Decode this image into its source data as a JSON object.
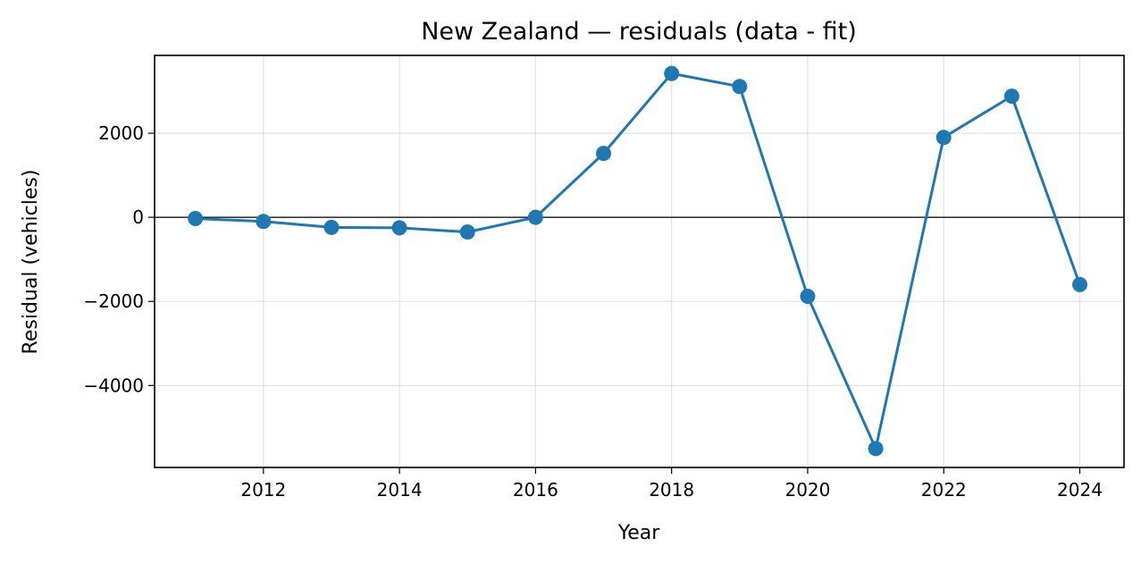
{
  "chart_data": {
    "type": "line",
    "title": "New Zealand — residuals (data - fit)",
    "xlabel": "Year",
    "ylabel": "Residual (vehicles)",
    "xlim": [
      2010.4,
      2024.65
    ],
    "ylim": [
      -5950,
      3850
    ],
    "x_ticks": [
      2012,
      2014,
      2016,
      2018,
      2020,
      2022,
      2024
    ],
    "y_ticks": [
      2000,
      0,
      -2000,
      -4000
    ],
    "y_tick_labels": [
      "2000",
      "0",
      "−2000",
      "−4000"
    ],
    "grid": true,
    "zero_line": true,
    "color": "#1f77b4",
    "x": [
      2011,
      2012,
      2013,
      2014,
      2015,
      2016,
      2017,
      2018,
      2019,
      2020,
      2021,
      2022,
      2023,
      2024
    ],
    "series": [
      {
        "values": [
          -30,
          -100,
          -240,
          -250,
          -350,
          0,
          1520,
          3420,
          3110,
          -1880,
          -5500,
          1900,
          2880,
          -1600
        ]
      }
    ]
  }
}
